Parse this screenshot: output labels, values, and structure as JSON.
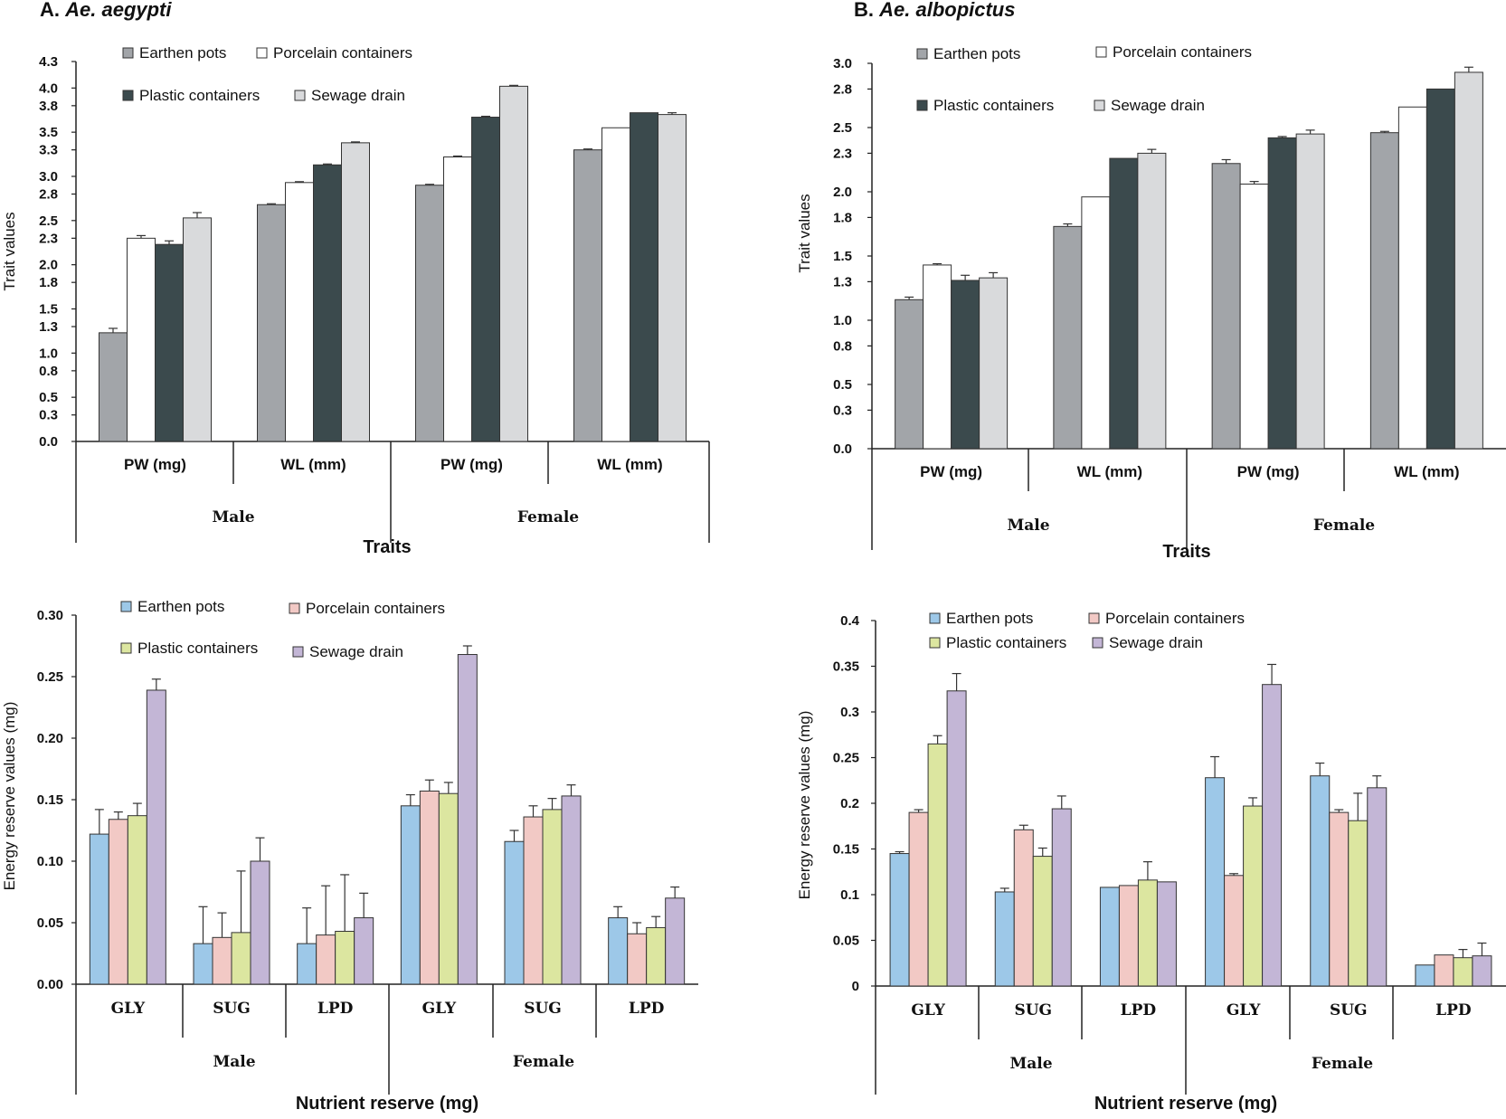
{
  "panels": {
    "a": {
      "prefix": "A. ",
      "species": "Ae. aegypti"
    },
    "b": {
      "prefix": "B. ",
      "species": "Ae. albopictus"
    }
  },
  "chart_data": [
    {
      "id": "c1",
      "type": "bar",
      "panel": "A. Ae. aegypti",
      "ylabel": "Trait values",
      "xlabel": "Traits",
      "ylim": [
        0,
        4.3
      ],
      "yticks": [
        "0.0",
        "0.3",
        "0.5",
        "0.8",
        "1.0",
        "1.3",
        "1.5",
        "1.8",
        "2.0",
        "2.3",
        "2.5",
        "2.8",
        "3.0",
        "3.3",
        "3.5",
        "3.8",
        "4.0",
        "4.3"
      ],
      "categories": [
        "PW (mg)",
        "WL (mm)",
        "PW (mg)",
        "WL (mm)"
      ],
      "groups": [
        "Male",
        "Female"
      ],
      "legend": "top-left",
      "series": [
        {
          "name": "Earthen pots",
          "color": "#a2a5a9",
          "values": [
            1.23,
            2.68,
            2.9,
            3.3
          ],
          "errors": [
            0.05,
            0.01,
            0.01,
            0.01
          ]
        },
        {
          "name": "Porcelain containers",
          "color": "#ffffff",
          "values": [
            2.3,
            2.93,
            3.22,
            3.55
          ],
          "errors": [
            0.03,
            0.01,
            0.01,
            0.0
          ]
        },
        {
          "name": "Plastic containers",
          "color": "#3b4a4d",
          "values": [
            2.23,
            3.13,
            3.67,
            3.72
          ],
          "errors": [
            0.04,
            0.01,
            0.01,
            0.0
          ]
        },
        {
          "name": "Sewage drain",
          "color": "#d9dadc",
          "values": [
            2.53,
            3.38,
            4.02,
            3.7
          ],
          "errors": [
            0.06,
            0.01,
            0.01,
            0.02
          ]
        }
      ]
    },
    {
      "id": "c2",
      "type": "bar",
      "panel": "B. Ae. albopictus",
      "ylabel": "Trait values",
      "xlabel": "Traits",
      "ylim": [
        0,
        3.0
      ],
      "yticks": [
        "0.0",
        "0.3",
        "0.5",
        "0.8",
        "1.0",
        "1.3",
        "1.5",
        "1.8",
        "2.0",
        "2.3",
        "2.5",
        "2.8",
        "3.0"
      ],
      "categories": [
        "PW (mg)",
        "WL (mm)",
        "PW (mg)",
        "WL (mm)"
      ],
      "groups": [
        "Male",
        "Female"
      ],
      "legend": "top-left",
      "series": [
        {
          "name": "Earthen pots",
          "color": "#a2a5a9",
          "values": [
            1.16,
            1.73,
            2.22,
            2.46
          ],
          "errors": [
            0.02,
            0.02,
            0.03,
            0.01
          ]
        },
        {
          "name": "Porcelain containers",
          "color": "#ffffff",
          "values": [
            1.43,
            1.96,
            2.06,
            2.66
          ],
          "errors": [
            0.01,
            0.0,
            0.02,
            0.0
          ]
        },
        {
          "name": "Plastic containers",
          "color": "#3b4a4d",
          "values": [
            1.31,
            2.26,
            2.42,
            2.8
          ],
          "errors": [
            0.04,
            0.0,
            0.01,
            0.0
          ]
        },
        {
          "name": "Sewage drain",
          "color": "#d9dadc",
          "values": [
            1.33,
            2.3,
            2.45,
            2.93
          ],
          "errors": [
            0.04,
            0.03,
            0.03,
            0.04
          ]
        }
      ]
    },
    {
      "id": "c3",
      "type": "bar",
      "panel": "A. Ae. aegypti",
      "ylabel": "Energy reserve values (mg)",
      "xlabel": "Nutrient reserve (mg)",
      "ylim": [
        0,
        0.3
      ],
      "yticks": [
        "0.00",
        "0.05",
        "0.10",
        "0.15",
        "0.20",
        "0.25",
        "0.30"
      ],
      "categories": [
        "GLY",
        "SUG",
        "LPD",
        "GLY",
        "SUG",
        "LPD"
      ],
      "groups": [
        "Male",
        "Female"
      ],
      "legend": "top-left",
      "series": [
        {
          "name": "Earthen pots",
          "color": "#9dc8e8",
          "values": [
            0.122,
            0.033,
            0.033,
            0.145,
            0.116,
            0.054
          ],
          "errors": [
            0.02,
            0.03,
            0.029,
            0.009,
            0.009,
            0.009
          ]
        },
        {
          "name": "Porcelain containers",
          "color": "#f2c9c5",
          "values": [
            0.134,
            0.038,
            0.04,
            0.157,
            0.136,
            0.041
          ],
          "errors": [
            0.006,
            0.02,
            0.04,
            0.009,
            0.009,
            0.009
          ]
        },
        {
          "name": "Plastic containers",
          "color": "#dce6a0",
          "values": [
            0.137,
            0.042,
            0.043,
            0.155,
            0.142,
            0.046
          ],
          "errors": [
            0.01,
            0.05,
            0.046,
            0.009,
            0.009,
            0.009
          ]
        },
        {
          "name": "Sewage drain",
          "color": "#c3b6d6",
          "values": [
            0.239,
            0.1,
            0.054,
            0.268,
            0.153,
            0.07
          ],
          "errors": [
            0.009,
            0.019,
            0.02,
            0.007,
            0.009,
            0.009
          ]
        }
      ]
    },
    {
      "id": "c4",
      "type": "bar",
      "panel": "B. Ae. albopictus",
      "ylabel": "Energy reserve values (mg)",
      "xlabel": "Nutrient reserve (mg)",
      "ylim": [
        0,
        0.4
      ],
      "yticks": [
        "0",
        "0.05",
        "0.1",
        "0.15",
        "0.2",
        "0.25",
        "0.3",
        "0.35",
        "0.4"
      ],
      "categories": [
        "GLY",
        "SUG",
        "LPD",
        "GLY",
        "SUG",
        "LPD"
      ],
      "groups": [
        "Male",
        "Female"
      ],
      "legend": "top-left",
      "series": [
        {
          "name": "Earthen pots",
          "color": "#9dc8e8",
          "values": [
            0.145,
            0.103,
            0.108,
            0.228,
            0.23,
            0.023
          ],
          "errors": [
            0.002,
            0.004,
            0.0,
            0.023,
            0.014,
            0.0
          ]
        },
        {
          "name": "Porcelain containers",
          "color": "#f2c9c5",
          "values": [
            0.19,
            0.171,
            0.11,
            0.121,
            0.19,
            0.034
          ],
          "errors": [
            0.003,
            0.005,
            0.0,
            0.002,
            0.003,
            0.0
          ]
        },
        {
          "name": "Plastic containers",
          "color": "#dce6a0",
          "values": [
            0.265,
            0.142,
            0.116,
            0.197,
            0.181,
            0.031
          ],
          "errors": [
            0.009,
            0.009,
            0.02,
            0.009,
            0.03,
            0.009
          ]
        },
        {
          "name": "Sewage drain",
          "color": "#c3b6d6",
          "values": [
            0.323,
            0.194,
            0.114,
            0.33,
            0.217,
            0.033
          ],
          "errors": [
            0.019,
            0.014,
            0.0,
            0.022,
            0.013,
            0.014
          ]
        }
      ]
    }
  ]
}
